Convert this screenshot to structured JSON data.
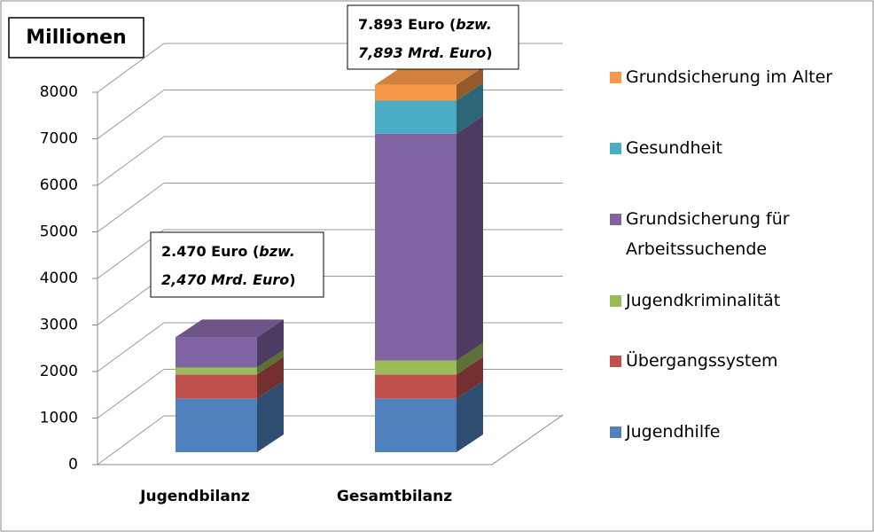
{
  "chart_data": {
    "type": "bar",
    "stacked": true,
    "title": "Millionen",
    "categories": [
      "Jugendbilanz",
      "Gesamtbilanz"
    ],
    "series": [
      {
        "name": "Jugendhilfe",
        "color": "#4f81bd",
        "values": [
          1150,
          1150
        ]
      },
      {
        "name": "Übergangssystem",
        "color": "#c0504d",
        "values": [
          520,
          520
        ]
      },
      {
        "name": "Jugendkriminalität",
        "color": "#9bbb59",
        "values": [
          150,
          300
        ]
      },
      {
        "name": "Grundsicherung für Arbeitssuchende",
        "color": "#8064a2",
        "values": [
          650,
          4873
        ]
      },
      {
        "name": "Gesundheit",
        "color": "#4bacc6",
        "values": [
          0,
          710
        ]
      },
      {
        "name": "Grundsicherung im Alter",
        "color": "#f79646",
        "values": [
          0,
          340
        ]
      }
    ],
    "ylim": [
      0,
      8000
    ],
    "yticks": [
      0,
      1000,
      2000,
      3000,
      4000,
      5000,
      6000,
      7000,
      8000
    ],
    "grid": true,
    "annotations": [
      {
        "text": [
          "2.470 Euro (",
          "bzw.",
          "2,470 Mrd. Euro",
          ")"
        ]
      },
      {
        "text": [
          "7.893 Euro (",
          "bzw.",
          "7,893 Mrd. Euro",
          ")"
        ]
      }
    ]
  }
}
